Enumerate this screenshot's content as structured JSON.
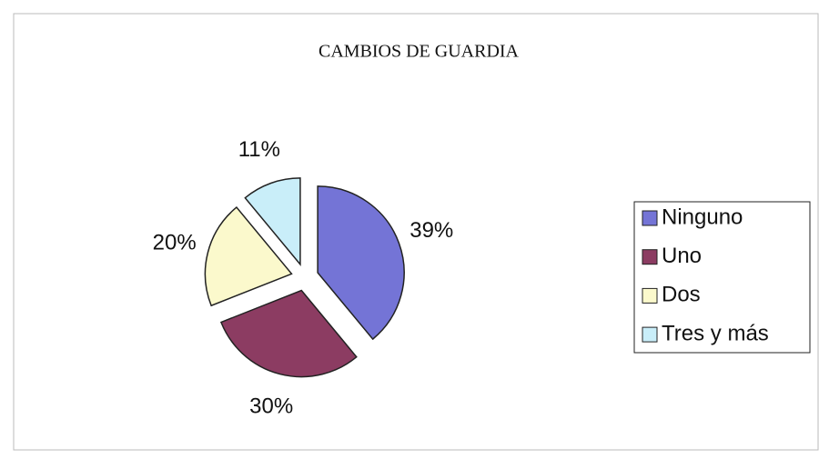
{
  "chart_data": {
    "type": "pie",
    "title": "CAMBIOS DE GUARDIA",
    "categories": [
      "Ninguno",
      "Uno",
      "Dos",
      "Tres y más"
    ],
    "values": [
      39,
      30,
      20,
      11
    ],
    "value_labels": [
      "39%",
      "30%",
      "20%",
      "11%"
    ],
    "colors": [
      "#7474d6",
      "#8c3c62",
      "#fbf9cc",
      "#c9eef9"
    ],
    "legend": "right"
  }
}
